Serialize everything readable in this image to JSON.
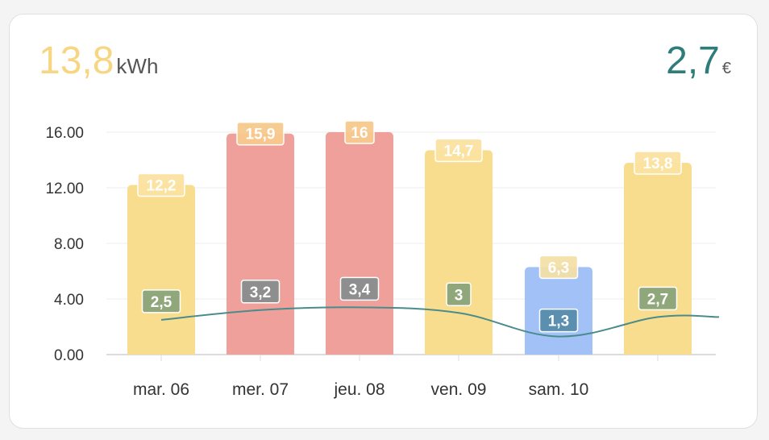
{
  "header": {
    "energy_value": "13,8",
    "energy_unit": "kWh",
    "cost_value": "2,7",
    "cost_unit": "€"
  },
  "colors": {
    "energy_accent": "#f7d683",
    "cost_accent": "#2e7d7a",
    "bar_normal": "#f9dd8e",
    "bar_high": "#f0a09a",
    "bar_low": "#a2c2f7",
    "cost_line": "#4a8c8b",
    "cost_label_normal": "#8fa77a",
    "cost_label_high": "#8e8e8e",
    "cost_label_low": "#5a8fb0"
  },
  "chart_data": {
    "type": "bar",
    "categories": [
      "mar. 06",
      "mer. 07",
      "jeu. 08",
      "ven. 09",
      "sam. 10",
      ""
    ],
    "series": [
      {
        "name": "",
        "type": "bar",
        "values": [
          12.2,
          15.9,
          16,
          14.7,
          6.3,
          13.8
        ],
        "labels": [
          "12,2",
          "15,9",
          "16",
          "14,7",
          "6,3",
          "13,8"
        ],
        "levels": [
          "normal",
          "high",
          "high",
          "normal",
          "low",
          "normal"
        ]
      },
      {
        "name": "",
        "type": "line",
        "values": [
          2.5,
          3.2,
          3.4,
          3,
          1.3,
          2.7
        ],
        "labels": [
          "2,5",
          "3,2",
          "3,4",
          "3",
          "1,3",
          "2,7"
        ],
        "levels": [
          "normal",
          "high",
          "high",
          "normal",
          "low",
          "normal"
        ]
      }
    ],
    "y_ticks": [
      "0.00",
      "4.00",
      "8.00",
      "12.00",
      "16.00"
    ],
    "ylim": [
      0,
      16
    ],
    "grid": true,
    "legend": "none"
  }
}
